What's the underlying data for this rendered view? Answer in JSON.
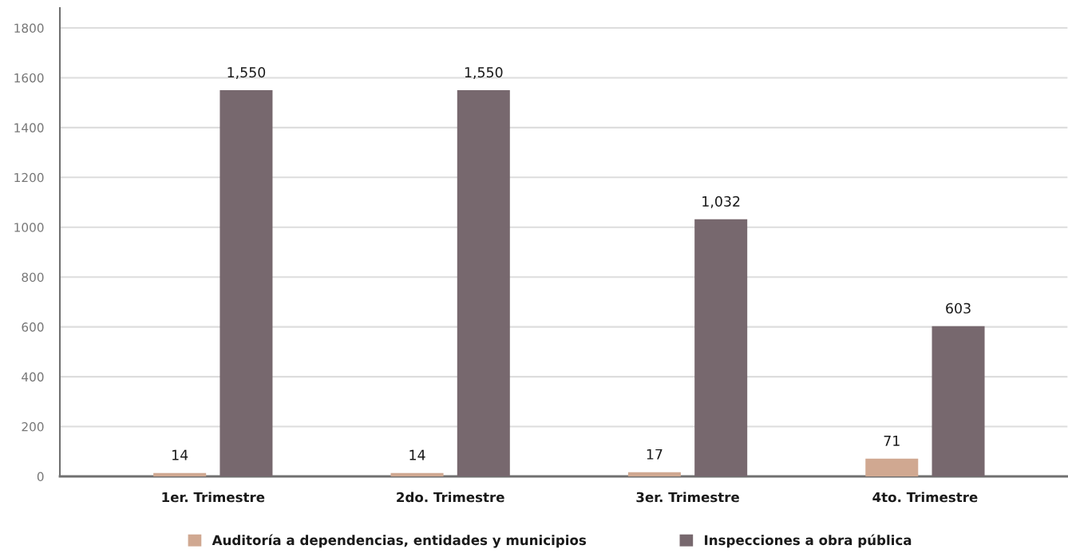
{
  "chart_data": {
    "type": "bar",
    "categories": [
      "1er. Trimestre",
      "2do. Trimestre",
      "3er. Trimestre",
      "4to. Trimestre"
    ],
    "series": [
      {
        "name": "Auditoría a dependencias, entidades y municipios",
        "color": "#d0a891",
        "values": [
          14,
          14,
          17,
          71
        ],
        "value_labels": [
          "14",
          "14",
          "17",
          "71"
        ]
      },
      {
        "name": "Inspecciones a obra pública",
        "color": "#77686e",
        "values": [
          1550,
          1550,
          1032,
          603
        ],
        "value_labels": [
          "1,550",
          "1,550",
          "1,032",
          "603"
        ]
      }
    ],
    "ylim": [
      0,
      1880
    ],
    "yticks": [
      0,
      200,
      400,
      600,
      800,
      1000,
      1200,
      1400,
      1600,
      1800
    ],
    "grid": "y",
    "legend": "bottom"
  }
}
